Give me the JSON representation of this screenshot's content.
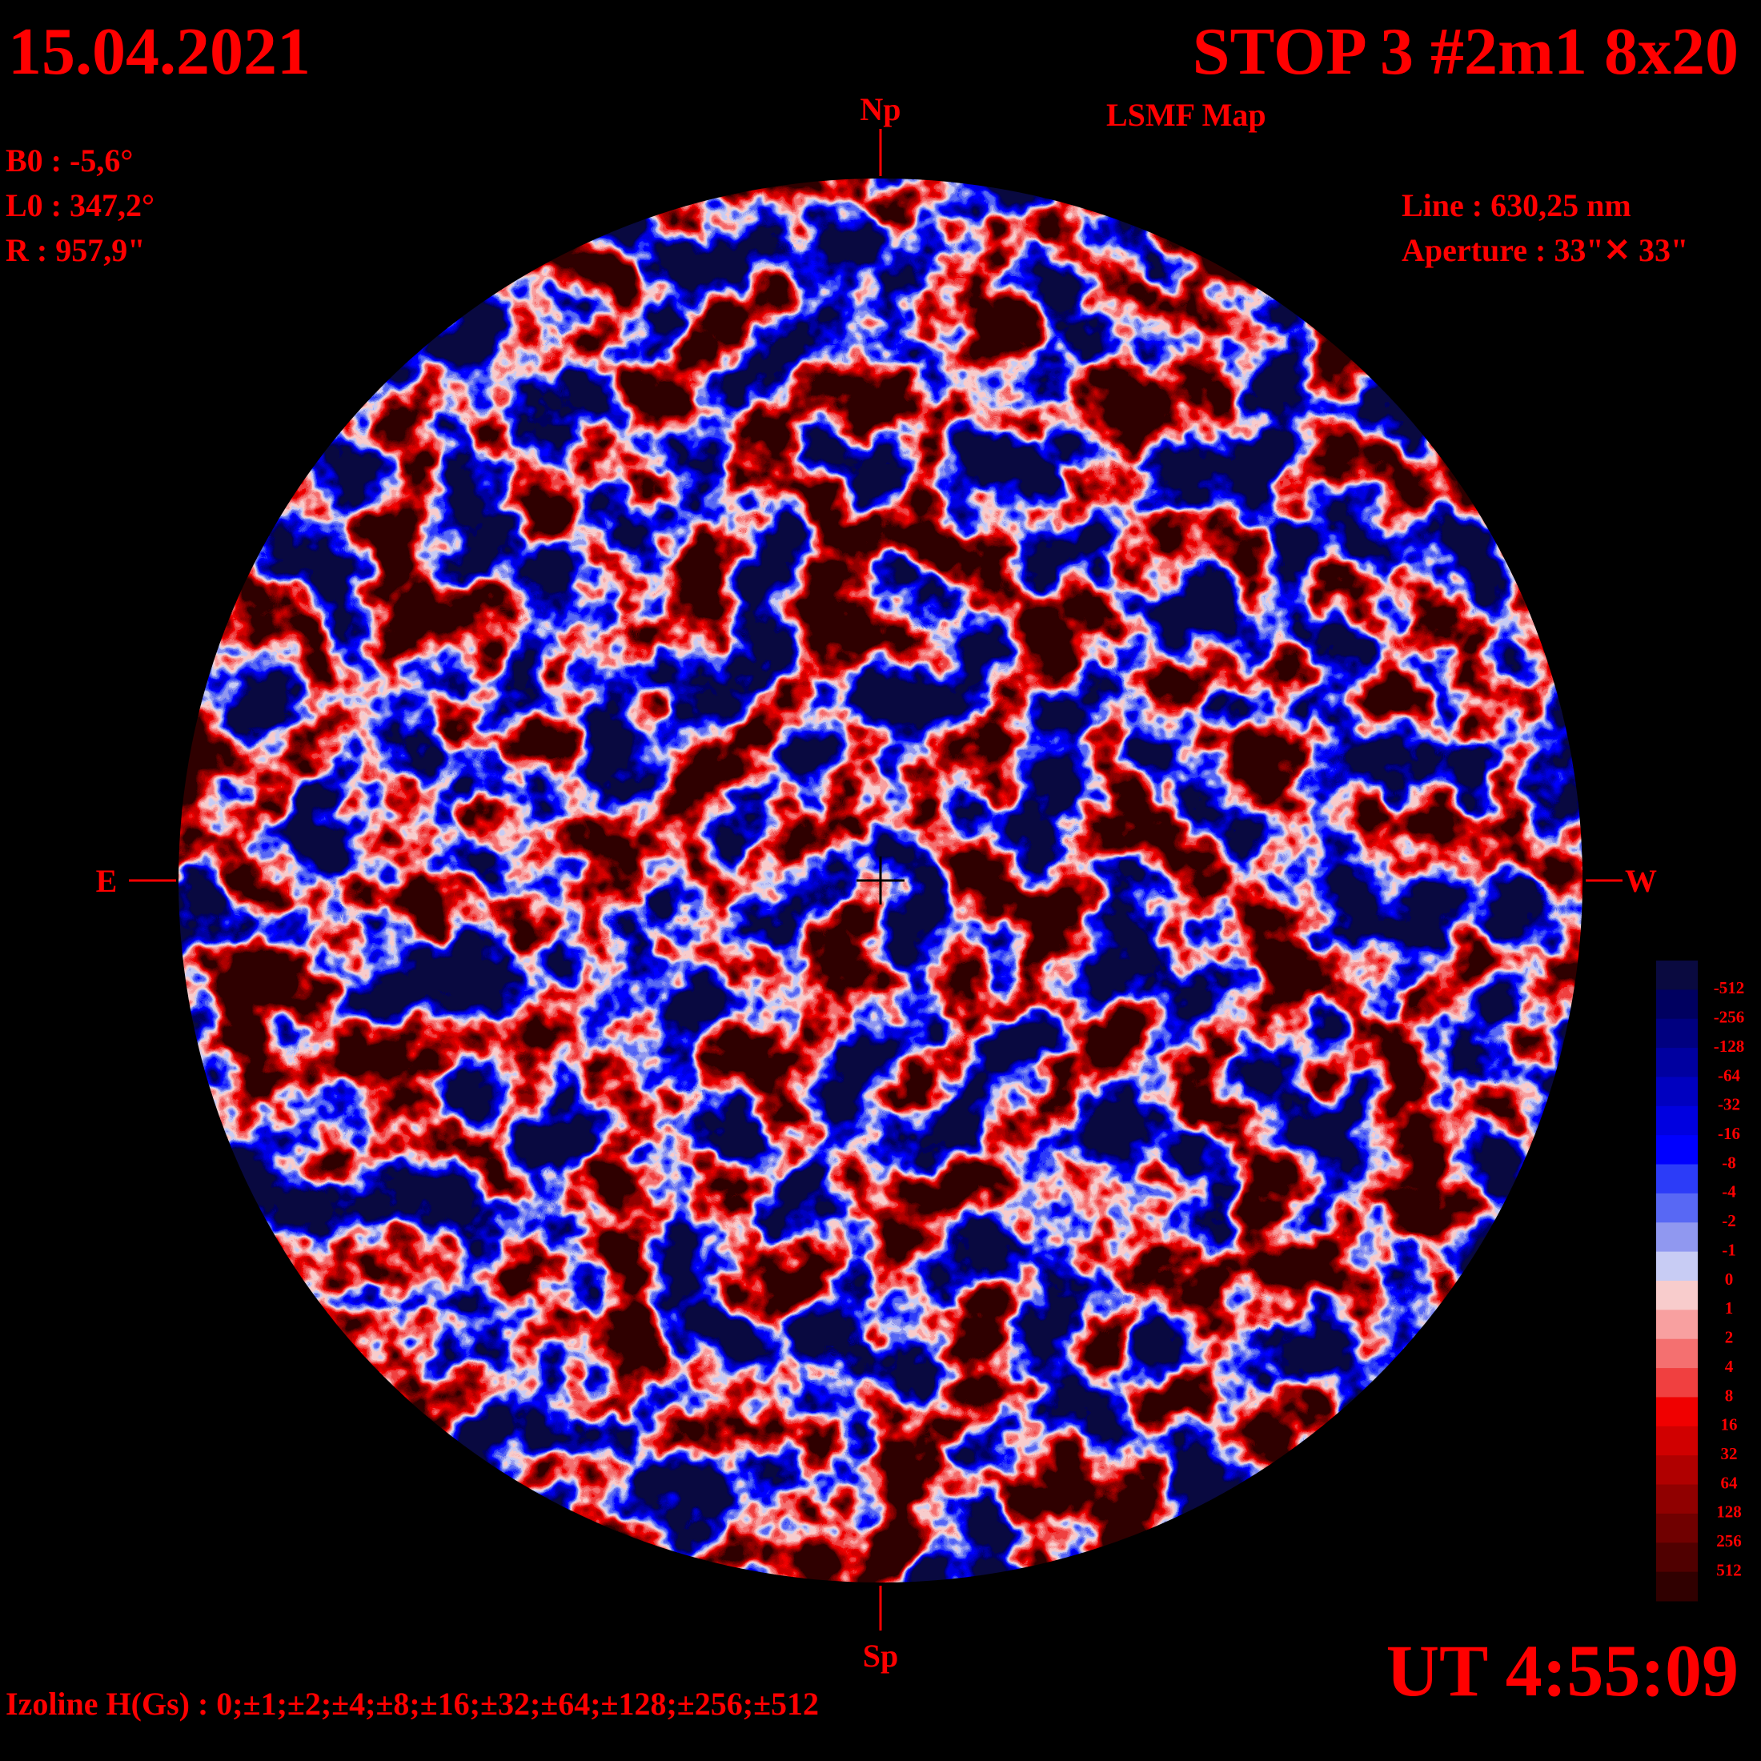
{
  "header": {
    "date": "15.04.2021",
    "title": "STOP 3 #2m1 8x20",
    "subtitle": "LSMF  Map",
    "params_left": [
      "B0 : -5,6°",
      "L0 : 347,2°",
      "R  : 957,9\""
    ],
    "params_right": [
      "Line :  630,25 nm",
      "Aperture : 33\"✕ 33\""
    ]
  },
  "directions": {
    "north": "Np",
    "south": "Sp",
    "east": "E",
    "west": "W"
  },
  "time": "UT 4:55:09",
  "footer": "Izoline H(Gs) : 0;±1;±2;±4;±8;±16;±32;±64;±128;±256;±512",
  "colorbar": {
    "labels": [
      "-512",
      "-256",
      "-128",
      "-64",
      "-32",
      "-16",
      "-8",
      "-4",
      "-2",
      "-1",
      "0",
      "1",
      "2",
      "4",
      "8",
      "16",
      "32",
      "64",
      "128",
      "256",
      "512"
    ],
    "colors": [
      "#0a0a40",
      "#000060",
      "#000080",
      "#0000a0",
      "#0000c0",
      "#0000e0",
      "#0000ff",
      "#2c3cf8",
      "#5868f4",
      "#9098f0",
      "#c8ccf4",
      "#f8cccc",
      "#f8a0a0",
      "#f47070",
      "#f04040",
      "#f00000",
      "#d00000",
      "#b00000",
      "#900000",
      "#700000",
      "#500000",
      "#300000"
    ]
  }
}
